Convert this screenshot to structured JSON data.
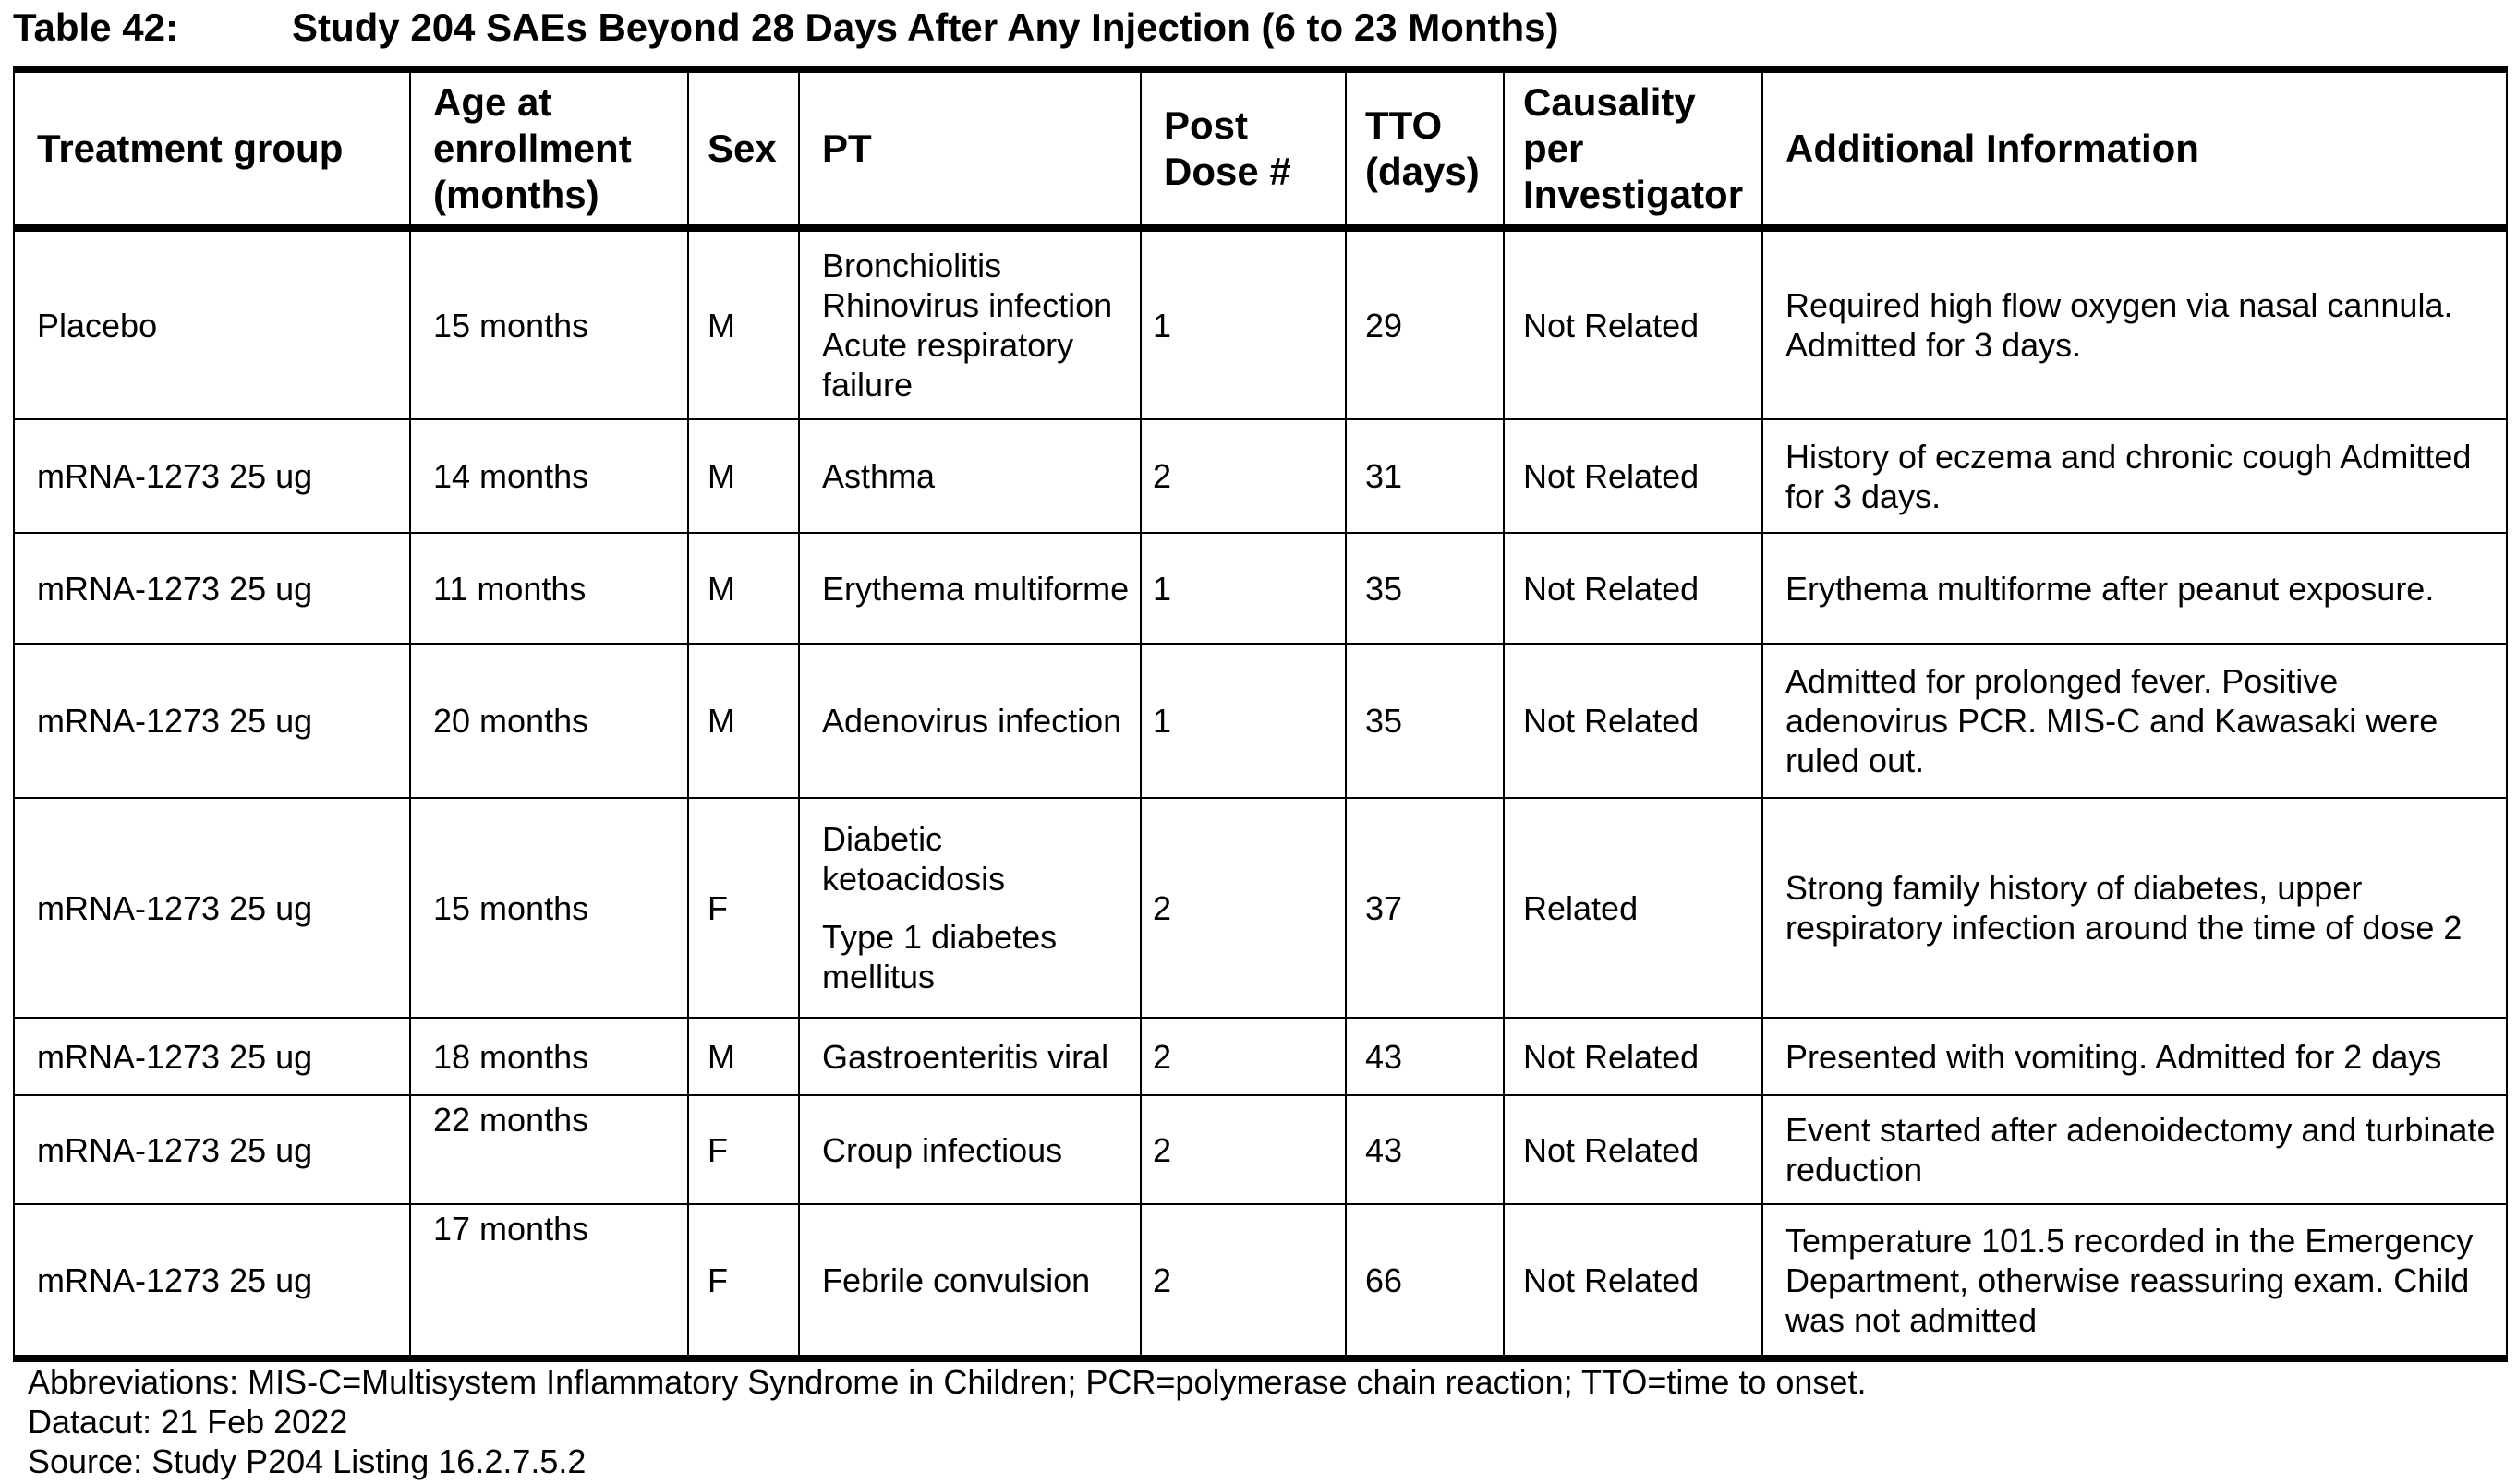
{
  "title": {
    "number": "Table 42:",
    "text": "Study 204 SAEs Beyond 28 Days After Any Injection (6 to 23 Months)"
  },
  "headers": [
    "Treatment group",
    "Age at enrollment (months)",
    "Sex",
    "PT",
    "Post Dose #",
    "TTO (days)",
    "Causality per Investigator",
    "Additional Information"
  ],
  "rows": [
    {
      "group": "Placebo",
      "age": "15 months",
      "sex": "M",
      "pt": "Bronchiolitis Rhinovirus infection Acute respiratory failure",
      "dose": "1",
      "tto": "29",
      "causality": "Not Related",
      "info": "Required high flow oxygen via nasal cannula. Admitted for 3 days."
    },
    {
      "group": "mRNA-1273 25 ug",
      "age": "14 months",
      "sex": "M",
      "pt": "Asthma",
      "dose": "2",
      "tto": "31",
      "causality": "Not Related",
      "info": "History of eczema and chronic cough Admitted for 3 days."
    },
    {
      "group": "mRNA-1273 25 ug",
      "age": "11 months",
      "sex": "M",
      "pt": "Erythema multiforme",
      "dose": "1",
      "tto": "35",
      "causality": "Not Related",
      "info": "Erythema multiforme after peanut exposure."
    },
    {
      "group": "mRNA-1273 25 ug",
      "age": "20 months",
      "sex": "M",
      "pt": "Adenovirus infection",
      "dose": "1",
      "tto": "35",
      "causality": "Not Related",
      "info": "Admitted for prolonged fever. Positive adenovirus PCR. MIS-C and Kawasaki were ruled out."
    },
    {
      "group": "mRNA-1273 25 ug",
      "age": "15 months",
      "sex": "F",
      "pt": "Diabetic ketoacidosis",
      "pt2": "Type 1 diabetes mellitus",
      "dose": "2",
      "tto": "37",
      "causality": "Related",
      "info": "Strong family history of diabetes, upper respiratory infection around the time of dose 2"
    },
    {
      "group": "mRNA-1273 25 ug",
      "age": "18 months",
      "sex": "M",
      "pt": "Gastroenteritis viral",
      "dose": "2",
      "tto": "43",
      "causality": "Not Related",
      "info": "Presented with vomiting. Admitted for 2 days"
    },
    {
      "group": "mRNA-1273 25 ug",
      "age": "22 months",
      "sex": "F",
      "pt": "Croup infectious",
      "dose": "2",
      "tto": "43",
      "causality": "Not Related",
      "info": "Event started after adenoidectomy and turbinate reduction"
    },
    {
      "group": "mRNA-1273 25 ug",
      "age": "17 months",
      "sex": "F",
      "pt": "Febrile convulsion",
      "dose": "2",
      "tto": "66",
      "causality": "Not Related",
      "info": "Temperature 101.5 recorded in the Emergency Department, otherwise reassuring exam. Child was not admitted"
    }
  ],
  "footnotes": {
    "abbreviations": "Abbreviations: MIS-C=Multisystem Inflammatory Syndrome in Children; PCR=polymerase chain reaction; TTO=time to onset.",
    "datacut": "Datacut: 21 Feb 2022",
    "source": "Source: Study P204 Listing 16.2.7.5.2"
  }
}
